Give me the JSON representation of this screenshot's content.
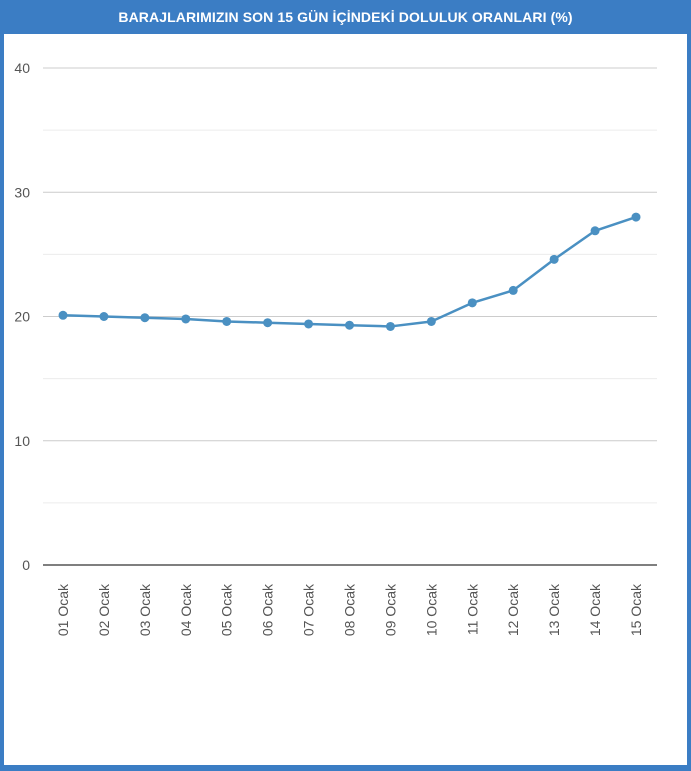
{
  "chart_data": {
    "type": "line",
    "title": "BARAJLARIMIZIN SON 15 GÜN İÇİNDEKİ DOLULUK ORANLARI (%)",
    "categories": [
      "01 Ocak",
      "02 Ocak",
      "03 Ocak",
      "04 Ocak",
      "05 Ocak",
      "06 Ocak",
      "07 Ocak",
      "08 Ocak",
      "09 Ocak",
      "10 Ocak",
      "11 Ocak",
      "12 Ocak",
      "13 Ocak",
      "14 Ocak",
      "15 Ocak"
    ],
    "values": [
      20.1,
      20.0,
      19.9,
      19.8,
      19.6,
      19.5,
      19.4,
      19.3,
      19.2,
      19.6,
      21.1,
      22.1,
      24.6,
      26.9,
      28.0
    ],
    "ylim": [
      0,
      40
    ],
    "yticks": [
      0,
      10,
      20,
      30,
      40
    ],
    "grid": true,
    "line_color": "#4a90c2",
    "header_color": "#3b7dc4"
  }
}
